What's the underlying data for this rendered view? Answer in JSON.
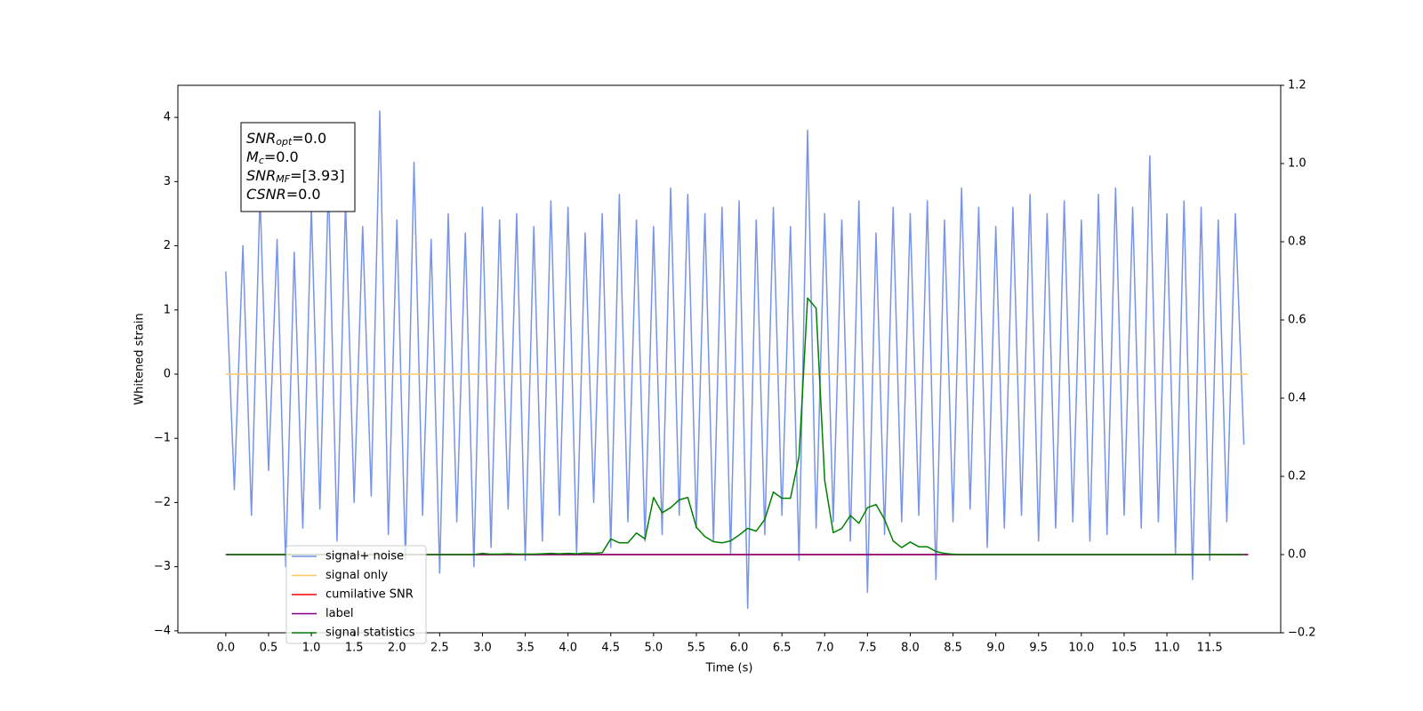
{
  "chart_data": {
    "type": "line",
    "xlabel": "Time (s)",
    "ylabel": "Whitened strain",
    "annotation": [
      {
        "name": "SNR",
        "sub": "opt",
        "text": "=0.0"
      },
      {
        "name": "M",
        "sub": "c",
        "text": "=0.0"
      },
      {
        "name": "SNR",
        "sub": "MF",
        "text": "=[3.93]"
      },
      {
        "name": "CSNR",
        "sub": "",
        "text": "=0.0"
      }
    ],
    "xlim": [
      -0.56,
      12.33
    ],
    "ylim": [
      -4.03,
      4.5
    ],
    "y2lim": [
      -0.2,
      1.2
    ],
    "xticks": [
      {
        "value": 0,
        "label": "0.0"
      },
      0.5,
      {
        "value": 1,
        "label": "1.0"
      },
      1.5,
      {
        "value": 2,
        "label": "2.0"
      },
      2.5,
      {
        "value": 3,
        "label": "3.0"
      },
      3.5,
      {
        "value": 4,
        "label": "4.0"
      },
      4.5,
      {
        "value": 5,
        "label": "5.0"
      },
      5.5,
      {
        "value": 6,
        "label": "6.0"
      },
      6.5,
      {
        "value": 7,
        "label": "7.0"
      },
      7.5,
      {
        "value": 8,
        "label": "8.0"
      },
      8.5,
      {
        "value": 9,
        "label": "9.0"
      },
      9.5,
      {
        "value": 10,
        "label": "10.0"
      },
      10.5,
      {
        "value": 11,
        "label": "11.0"
      },
      11.5
    ],
    "yticks": [
      {
        "value": -4,
        "label": "−4"
      },
      {
        "value": -3,
        "label": "−3"
      },
      {
        "value": -2,
        "label": "−2"
      },
      {
        "value": -1,
        "label": "−1"
      },
      0,
      1,
      2,
      3,
      4
    ],
    "y2ticks": [
      {
        "value": -0.2,
        "label": "−0.2"
      },
      {
        "value": 0,
        "label": "0.0"
      },
      0.2,
      0.4,
      0.6,
      0.8,
      {
        "value": 1,
        "label": "1.0"
      },
      1.2
    ],
    "legend": "lower left",
    "series": [
      {
        "name": "signal+ noise",
        "color": "#7894e7",
        "x": [
          0.0,
          0.1,
          0.2,
          0.3,
          0.4,
          0.5,
          0.6,
          0.7,
          0.8,
          0.9,
          1.0,
          1.1,
          1.2,
          1.3,
          1.4,
          1.5,
          1.6,
          1.7,
          1.8,
          1.9,
          2.0,
          2.1,
          2.2,
          2.3,
          2.4,
          2.5,
          2.6,
          2.7,
          2.8,
          2.9,
          3.0,
          3.1,
          3.2,
          3.3,
          3.4,
          3.5,
          3.6,
          3.7,
          3.8,
          3.9,
          4.0,
          4.1,
          4.2,
          4.3,
          4.4,
          4.5,
          4.6,
          4.7,
          4.8,
          4.9,
          5.0,
          5.1,
          5.2,
          5.3,
          5.4,
          5.5,
          5.6,
          5.7,
          5.8,
          5.9,
          6.0,
          6.1,
          6.2,
          6.3,
          6.4,
          6.5,
          6.6,
          6.7,
          6.8,
          6.9,
          7.0,
          7.1,
          7.2,
          7.3,
          7.4,
          7.5,
          7.6,
          7.7,
          7.8,
          7.9,
          8.0,
          8.1,
          8.2,
          8.3,
          8.4,
          8.5,
          8.6,
          8.7,
          8.8,
          8.9,
          9.0,
          9.1,
          9.2,
          9.3,
          9.4,
          9.5,
          9.6,
          9.7,
          9.8,
          9.9,
          10.0,
          10.1,
          10.2,
          10.3,
          10.4,
          10.5,
          10.6,
          10.7,
          10.8,
          10.9,
          11.0,
          11.1,
          11.2,
          11.3,
          11.4,
          11.5,
          11.6,
          11.7,
          11.8,
          11.9
        ],
        "values": [
          1.6,
          -1.8,
          2.0,
          -2.2,
          2.8,
          -1.5,
          2.1,
          -3.0,
          1.9,
          -2.4,
          2.6,
          -2.1,
          3.0,
          -2.6,
          2.7,
          -2.0,
          2.3,
          -1.9,
          4.1,
          -2.5,
          2.4,
          -2.9,
          3.3,
          -2.2,
          2.1,
          -3.1,
          2.5,
          -2.3,
          2.2,
          -3.0,
          2.6,
          -2.7,
          2.4,
          -2.1,
          2.5,
          -2.9,
          2.3,
          -2.6,
          2.7,
          -2.2,
          2.6,
          -2.8,
          2.2,
          -2.0,
          2.5,
          -2.7,
          2.8,
          -2.3,
          2.4,
          -2.6,
          2.3,
          -2.5,
          2.9,
          -2.2,
          2.8,
          -2.4,
          2.5,
          -2.6,
          2.6,
          -2.8,
          2.7,
          -3.65,
          2.4,
          -2.5,
          2.6,
          -2.2,
          2.3,
          -2.9,
          3.8,
          -2.4,
          2.5,
          -2.3,
          2.4,
          -2.6,
          2.7,
          -3.4,
          2.2,
          -2.5,
          2.6,
          -2.3,
          2.5,
          -2.2,
          2.7,
          -3.2,
          2.4,
          -2.3,
          2.9,
          -2.1,
          2.6,
          -2.7,
          2.3,
          -2.4,
          2.6,
          -2.2,
          2.8,
          -2.6,
          2.5,
          -2.4,
          2.7,
          -2.3,
          2.4,
          -2.6,
          2.8,
          -2.5,
          2.9,
          -2.2,
          2.6,
          -2.4,
          3.4,
          -2.3,
          2.5,
          -2.8,
          2.7,
          -3.2,
          2.6,
          -2.9,
          2.4,
          -2.3,
          2.5,
          -1.1
        ]
      },
      {
        "name": "signal only",
        "color": "#ffc864",
        "x": [
          0.0,
          11.95
        ],
        "values": [
          0,
          0
        ]
      },
      {
        "name": "cumilative SNR",
        "color": "red",
        "axis": "y2",
        "x": [
          0.0,
          11.95
        ],
        "values": [
          0,
          0
        ]
      },
      {
        "name": "label",
        "color": "purple",
        "axis": "y2",
        "x": [
          0.0,
          11.95
        ],
        "values": [
          0,
          0
        ]
      },
      {
        "name": "signal statistics",
        "color": "green",
        "axis": "y2",
        "x": [
          0.0,
          0.1,
          0.2,
          0.3,
          0.4,
          0.5,
          0.6,
          0.7,
          0.8,
          0.9,
          1.0,
          1.1,
          1.2,
          1.3,
          1.4,
          1.5,
          1.6,
          1.7,
          1.8,
          1.9,
          2.0,
          2.1,
          2.2,
          2.3,
          2.4,
          2.5,
          2.6,
          2.7,
          2.8,
          2.9,
          3.0,
          3.1,
          3.2,
          3.3,
          3.4,
          3.5,
          3.6,
          3.7,
          3.8,
          3.9,
          4.0,
          4.1,
          4.2,
          4.3,
          4.4,
          4.5,
          4.6,
          4.7,
          4.8,
          4.9,
          5.0,
          5.1,
          5.2,
          5.3,
          5.4,
          5.5,
          5.6,
          5.7,
          5.8,
          5.9,
          6.0,
          6.1,
          6.2,
          6.3,
          6.4,
          6.5,
          6.6,
          6.7,
          6.8,
          6.9,
          7.0,
          7.1,
          7.2,
          7.3,
          7.4,
          7.5,
          7.6,
          7.7,
          7.8,
          7.9,
          8.0,
          8.1,
          8.2,
          8.3,
          8.4,
          8.5,
          8.6,
          8.7,
          8.8,
          8.9,
          9.0,
          9.1,
          9.2,
          9.3,
          9.4,
          9.5,
          9.6,
          9.7,
          9.8,
          9.9,
          10.0,
          10.1,
          10.2,
          10.3,
          10.4,
          10.5,
          10.6,
          10.7,
          10.8,
          10.9,
          11.0,
          11.1,
          11.2,
          11.3,
          11.4,
          11.5,
          11.6,
          11.7,
          11.8,
          11.9
        ],
        "values": [
          0,
          0,
          0,
          0,
          0,
          0,
          0,
          0,
          0,
          0,
          0,
          0,
          0,
          0,
          0,
          0,
          0,
          0,
          0,
          0,
          0,
          0,
          0,
          0,
          0,
          0,
          0,
          0,
          0,
          0,
          0.003,
          0.001,
          0.001,
          0.002,
          0.001,
          0.001,
          0.001,
          0.002,
          0.003,
          0.002,
          0.003,
          0.002,
          0.004,
          0.003,
          0.005,
          0.04,
          0.03,
          0.03,
          0.055,
          0.04,
          0.146,
          0.107,
          0.12,
          0.14,
          0.146,
          0.07,
          0.046,
          0.033,
          0.03,
          0.035,
          0.05,
          0.067,
          0.06,
          0.09,
          0.16,
          0.144,
          0.144,
          0.25,
          0.656,
          0.63,
          0.19,
          0.056,
          0.067,
          0.1,
          0.08,
          0.12,
          0.128,
          0.09,
          0.035,
          0.018,
          0.032,
          0.02,
          0.02,
          0.008,
          0.003,
          0.001,
          0,
          0,
          0,
          0,
          0,
          0,
          0,
          0,
          0,
          0,
          0,
          0,
          0,
          0,
          0,
          0,
          0,
          0,
          0,
          0,
          0,
          0,
          0,
          0,
          0,
          0,
          0,
          0,
          0,
          0,
          0,
          0,
          0,
          0
        ]
      }
    ]
  }
}
